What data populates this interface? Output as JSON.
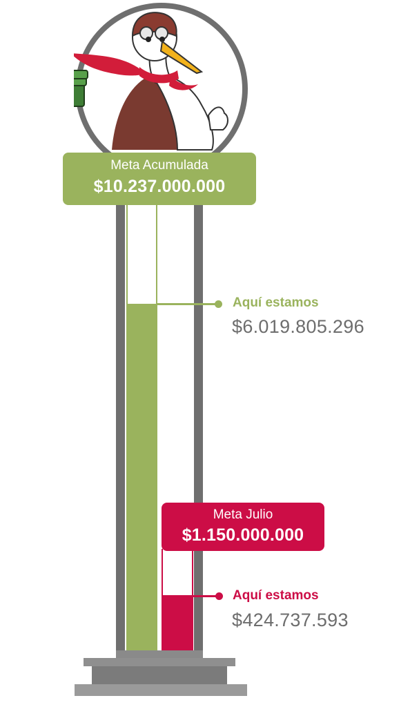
{
  "colors": {
    "green": "#9ab35d",
    "red": "#cc0d46",
    "frame": "#6f6f6f",
    "amount_text": "#6d6d6d"
  },
  "mascot": {
    "icon": "stork-mascot-icon",
    "holding": "money-stack-icon"
  },
  "accumulated": {
    "title": "Meta Acumulada",
    "goal": "$10.237.000.000",
    "here_label": "Aquí estamos",
    "current": "$6.019.805.296",
    "progress_fraction": 0.588
  },
  "july": {
    "title": "Meta Julio",
    "goal": "$1.150.000.000",
    "here_label": "Aquí estamos",
    "current": "$424.737.593",
    "progress_fraction": 0.369
  }
}
